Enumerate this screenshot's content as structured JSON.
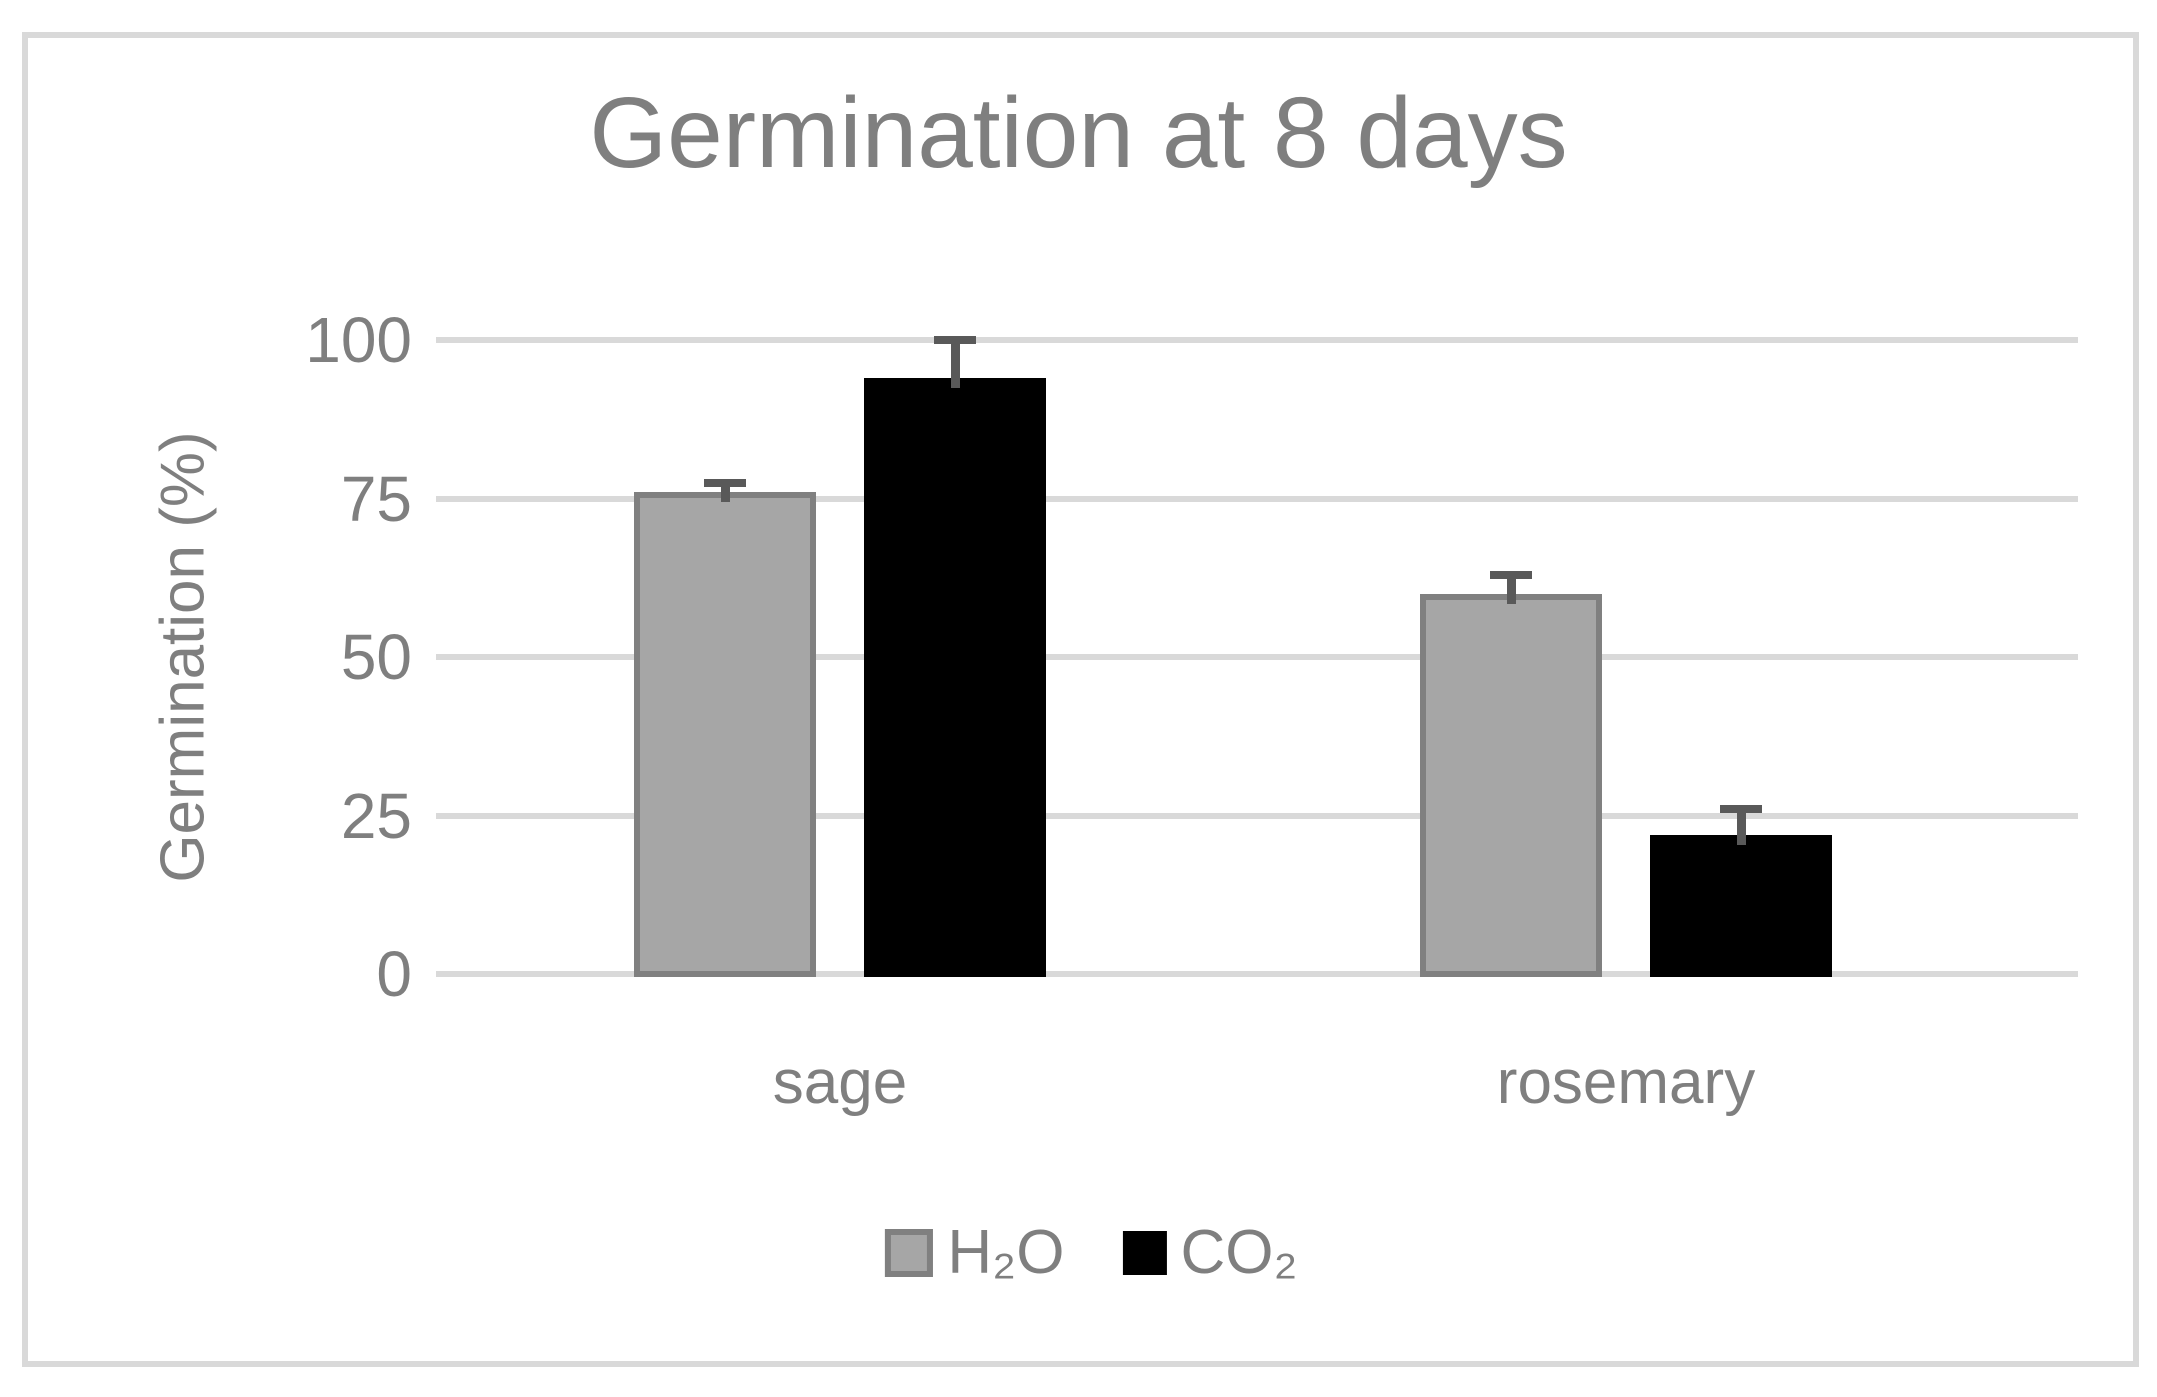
{
  "chart_data": {
    "type": "bar",
    "title": "Germination at 8 days",
    "ylabel": "Germination (%)",
    "xlabel": "",
    "categories": [
      "sage",
      "rosemary"
    ],
    "series": [
      {
        "name": "H₂O",
        "values": [
          76,
          60
        ],
        "error_plus": [
          1.5,
          3
        ],
        "fill": "#A6A6A6",
        "stroke": "#808080"
      },
      {
        "name": "CO₂",
        "values": [
          94,
          22
        ],
        "error_plus": [
          6,
          4
        ],
        "fill": "#000000",
        "stroke": "#000000"
      }
    ],
    "ylim": [
      0,
      100
    ],
    "yticks": [
      0,
      25,
      50,
      75,
      100
    ],
    "grid": true,
    "legend_position": "bottom",
    "colors": {
      "text": "#7F7F7F",
      "gridline": "#D9D9D9",
      "frame": "#D9D9D9",
      "error_bar": "#595959"
    }
  }
}
